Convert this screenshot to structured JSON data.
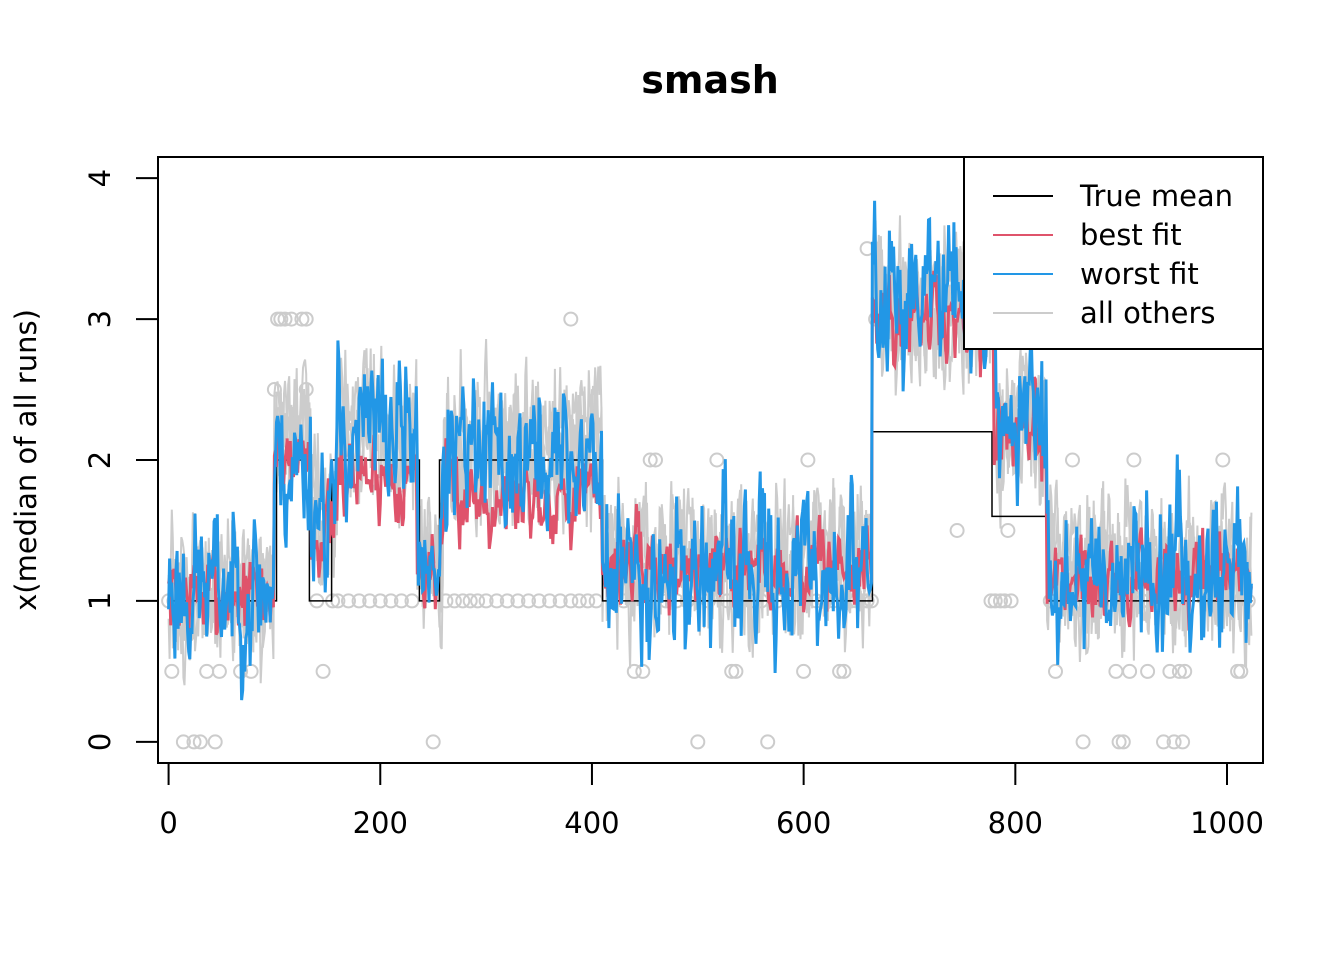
{
  "chart_data": {
    "type": "line",
    "title": "smash",
    "xlabel": "",
    "ylabel": "x(median of all runs)",
    "xlim": [
      -10,
      1034
    ],
    "ylim": [
      -0.15,
      4.15
    ],
    "x_ticks": [
      0,
      200,
      400,
      600,
      800,
      1000
    ],
    "y_ticks": [
      0,
      1,
      2,
      3,
      4
    ],
    "n_points": 1024,
    "legend": {
      "position": "top-right",
      "entries": [
        {
          "label": "True mean",
          "color": "#000000"
        },
        {
          "label": "best fit",
          "color": "#DF536B"
        },
        {
          "label": "worst fit",
          "color": "#2297E6"
        },
        {
          "label": "all others",
          "color": "#CCCCCC"
        }
      ]
    },
    "true_mean": {
      "name": "True mean",
      "color": "#000000",
      "segments": [
        {
          "x0": 0,
          "x1": 102,
          "y": 1.0
        },
        {
          "x0": 102,
          "x1": 133,
          "y": 2.0
        },
        {
          "x0": 133,
          "x1": 154,
          "y": 1.0
        },
        {
          "x0": 154,
          "x1": 237,
          "y": 2.0
        },
        {
          "x0": 237,
          "x1": 256,
          "y": 1.0
        },
        {
          "x0": 256,
          "x1": 410,
          "y": 2.0
        },
        {
          "x0": 410,
          "x1": 665,
          "y": 1.0
        },
        {
          "x0": 665,
          "x1": 778,
          "y": 2.2
        },
        {
          "x0": 778,
          "x1": 830,
          "y": 1.6
        },
        {
          "x0": 830,
          "x1": 1024,
          "y": 1.0
        }
      ]
    },
    "best_fit": {
      "name": "best fit",
      "color": "#DF536B",
      "levels": [
        {
          "x0": 0,
          "x1": 100,
          "y": 1.05
        },
        {
          "x0": 100,
          "x1": 135,
          "y": 2.05
        },
        {
          "x0": 135,
          "x1": 160,
          "y": 1.5
        },
        {
          "x0": 160,
          "x1": 235,
          "y": 1.9
        },
        {
          "x0": 235,
          "x1": 260,
          "y": 1.25
        },
        {
          "x0": 260,
          "x1": 410,
          "y": 1.75
        },
        {
          "x0": 410,
          "x1": 665,
          "y": 1.25
        },
        {
          "x0": 665,
          "x1": 780,
          "y": 3.0
        },
        {
          "x0": 780,
          "x1": 830,
          "y": 2.2
        },
        {
          "x0": 830,
          "x1": 1024,
          "y": 1.15
        }
      ],
      "noise": 0.25
    },
    "worst_fit": {
      "name": "worst fit",
      "color": "#2297E6",
      "levels": [
        {
          "x0": 0,
          "x1": 100,
          "y": 1.1
        },
        {
          "x0": 100,
          "x1": 135,
          "y": 1.95
        },
        {
          "x0": 135,
          "x1": 160,
          "y": 1.7
        },
        {
          "x0": 160,
          "x1": 235,
          "y": 2.2
        },
        {
          "x0": 235,
          "x1": 260,
          "y": 1.35
        },
        {
          "x0": 260,
          "x1": 410,
          "y": 2.0
        },
        {
          "x0": 410,
          "x1": 665,
          "y": 1.2
        },
        {
          "x0": 665,
          "x1": 780,
          "y": 3.2
        },
        {
          "x0": 780,
          "x1": 830,
          "y": 2.3
        },
        {
          "x0": 830,
          "x1": 1024,
          "y": 1.25
        }
      ],
      "noise": 0.45
    },
    "all_others": {
      "name": "all others",
      "color": "#CCCCCC",
      "count": 4,
      "levels": [
        {
          "x0": 0,
          "x1": 100,
          "y": 1.05
        },
        {
          "x0": 100,
          "x1": 135,
          "y": 2.2
        },
        {
          "x0": 135,
          "x1": 160,
          "y": 1.6
        },
        {
          "x0": 160,
          "x1": 235,
          "y": 2.2
        },
        {
          "x0": 235,
          "x1": 260,
          "y": 1.35
        },
        {
          "x0": 260,
          "x1": 410,
          "y": 2.1
        },
        {
          "x0": 410,
          "x1": 665,
          "y": 1.3
        },
        {
          "x0": 665,
          "x1": 780,
          "y": 3.1
        },
        {
          "x0": 780,
          "x1": 830,
          "y": 2.3
        },
        {
          "x0": 830,
          "x1": 1024,
          "y": 1.2
        }
      ],
      "noise": 0.4
    },
    "observations": {
      "name": "data points",
      "color": "#CCCCCC",
      "points": [
        [
          0,
          1
        ],
        [
          3,
          0.5
        ],
        [
          14,
          0
        ],
        [
          24,
          0
        ],
        [
          30,
          0
        ],
        [
          36,
          0.5
        ],
        [
          44,
          0
        ],
        [
          48,
          0.5
        ],
        [
          68,
          0.5
        ],
        [
          78,
          0.5
        ],
        [
          5,
          1
        ],
        [
          20,
          1
        ],
        [
          55,
          1
        ],
        [
          85,
          1
        ],
        [
          100,
          2.5
        ],
        [
          103,
          3
        ],
        [
          106,
          3
        ],
        [
          110,
          3
        ],
        [
          116,
          3
        ],
        [
          126,
          3
        ],
        [
          130,
          3
        ],
        [
          130,
          2.5
        ],
        [
          146,
          0.5
        ],
        [
          140,
          1
        ],
        [
          155,
          1
        ],
        [
          160,
          1
        ],
        [
          170,
          1
        ],
        [
          180,
          1
        ],
        [
          190,
          1
        ],
        [
          200,
          1
        ],
        [
          210,
          1
        ],
        [
          220,
          1
        ],
        [
          230,
          1
        ],
        [
          250,
          0
        ],
        [
          262,
          1
        ],
        [
          270,
          1
        ],
        [
          278,
          1
        ],
        [
          285,
          1
        ],
        [
          292,
          1
        ],
        [
          300,
          1
        ],
        [
          310,
          1
        ],
        [
          320,
          1
        ],
        [
          330,
          1
        ],
        [
          340,
          1
        ],
        [
          350,
          1
        ],
        [
          360,
          1
        ],
        [
          370,
          1
        ],
        [
          380,
          1
        ],
        [
          380,
          3
        ],
        [
          388,
          1
        ],
        [
          396,
          1
        ],
        [
          404,
          1
        ],
        [
          420,
          1
        ],
        [
          430,
          1
        ],
        [
          440,
          0.5
        ],
        [
          448,
          0.5
        ],
        [
          455,
          2
        ],
        [
          460,
          2
        ],
        [
          470,
          1
        ],
        [
          480,
          1
        ],
        [
          490,
          1
        ],
        [
          500,
          0
        ],
        [
          510,
          1
        ],
        [
          518,
          2
        ],
        [
          528,
          1
        ],
        [
          532,
          0.5
        ],
        [
          536,
          0.5
        ],
        [
          540,
          1
        ],
        [
          550,
          1
        ],
        [
          560,
          1
        ],
        [
          566,
          0
        ],
        [
          575,
          1
        ],
        [
          585,
          1
        ],
        [
          600,
          0.5
        ],
        [
          604,
          2
        ],
        [
          612,
          1
        ],
        [
          620,
          1
        ],
        [
          628,
          1
        ],
        [
          634,
          0.5
        ],
        [
          638,
          0.5
        ],
        [
          645,
          1
        ],
        [
          650,
          1
        ],
        [
          656,
          1
        ],
        [
          660,
          1
        ],
        [
          664,
          1
        ],
        [
          660,
          3.5
        ],
        [
          668,
          3
        ],
        [
          672,
          3
        ],
        [
          745,
          1.5
        ],
        [
          777,
          1
        ],
        [
          781,
          1
        ],
        [
          786,
          1
        ],
        [
          790,
          1
        ],
        [
          796,
          1
        ],
        [
          793,
          1.5
        ],
        [
          833,
          1
        ],
        [
          838,
          0.5
        ],
        [
          854,
          2
        ],
        [
          864,
          0
        ],
        [
          880,
          1
        ],
        [
          895,
          0.5
        ],
        [
          898,
          0
        ],
        [
          902,
          0
        ],
        [
          908,
          0.5
        ],
        [
          912,
          2
        ],
        [
          920,
          1
        ],
        [
          925,
          0.5
        ],
        [
          940,
          0
        ],
        [
          946,
          0.5
        ],
        [
          950,
          0
        ],
        [
          955,
          0.5
        ],
        [
          958,
          0
        ],
        [
          960,
          0.5
        ],
        [
          996,
          2
        ],
        [
          1010,
          0.5
        ],
        [
          1013,
          0.5
        ],
        [
          1020,
          1
        ]
      ]
    }
  }
}
